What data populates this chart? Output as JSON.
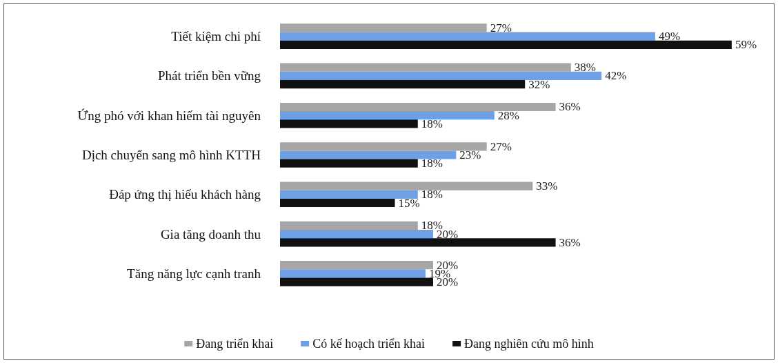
{
  "chart_data": {
    "type": "bar",
    "orientation": "horizontal",
    "categories": [
      "Tiết kiệm chi phí",
      "Phát triển bền vững",
      "Ứng phó với khan hiếm tài nguyên",
      "Dịch chuyển sang mô hình KTTH",
      "Đáp ứng thị hiếu khách hàng",
      "Gia tăng doanh thu",
      "Tăng năng lực cạnh tranh"
    ],
    "series": [
      {
        "name": "Đang triển khai",
        "color": "#a6a6a6",
        "values": [
          27,
          38,
          36,
          27,
          33,
          18,
          20
        ],
        "value_labels": [
          "27%",
          "38%",
          "36%",
          "27%",
          "33%",
          "18%",
          "20%"
        ]
      },
      {
        "name": "Có kế hoạch triển khai",
        "color": "#6fa0e6",
        "values": [
          49,
          42,
          28,
          23,
          18,
          20,
          19
        ],
        "value_labels": [
          "49%",
          "42%",
          "28%",
          "23%",
          "18%",
          "20%",
          "19%"
        ]
      },
      {
        "name": "Đang nghiên cứu mô hình",
        "color": "#111111",
        "values": [
          59,
          32,
          18,
          18,
          15,
          36,
          20
        ],
        "value_labels": [
          "59%",
          "32%",
          "18%",
          "18%",
          "15%",
          "36%",
          "20%"
        ]
      }
    ],
    "legend": "bottom"
  }
}
